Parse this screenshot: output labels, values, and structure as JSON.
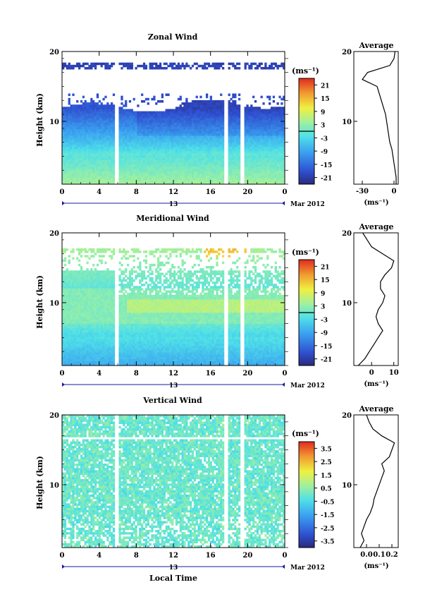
{
  "chart_data": [
    {
      "type": "heatmap",
      "title": "Zonal Wind",
      "ylabel": "Height (km)",
      "xlim": [
        0,
        24
      ],
      "ylim": [
        1,
        20
      ],
      "x_ticks": [
        "0",
        "4",
        "8",
        "12",
        "16",
        "20",
        "0"
      ],
      "y_ticks": [
        "10",
        "20"
      ],
      "date_label": "13",
      "month_label": "Mar 2012",
      "colorbar": {
        "unit": "(ms⁻¹)",
        "ticks": [
          "21",
          "15",
          "9",
          "3",
          "-3",
          "-9",
          "-15",
          "-21"
        ],
        "range": [
          -24,
          24
        ],
        "zero_line": true
      },
      "average": {
        "title": "Average",
        "xlabel": "(ms⁻¹)",
        "x_ticks": [
          "-30",
          "0"
        ],
        "xlim": [
          -38,
          4
        ],
        "profile_heights_km": [
          1,
          2,
          3,
          4,
          5,
          6,
          7,
          8,
          9,
          10,
          11,
          12,
          13,
          14,
          15,
          16,
          17,
          18,
          19,
          20
        ],
        "profile_values": [
          2,
          2,
          1,
          0,
          -1,
          -2,
          -4,
          -5,
          -6,
          -7,
          -8,
          -10,
          -12,
          -14,
          -16,
          -30,
          -25,
          -4,
          0,
          1
        ]
      }
    },
    {
      "type": "heatmap",
      "title": "Meridional Wind",
      "ylabel": "Height (km)",
      "xlim": [
        0,
        24
      ],
      "ylim": [
        1,
        20
      ],
      "x_ticks": [
        "0",
        "4",
        "8",
        "12",
        "16",
        "20",
        "0"
      ],
      "y_ticks": [
        "10",
        "20"
      ],
      "date_label": "13",
      "month_label": "Mar 2012",
      "colorbar": {
        "unit": "(ms⁻¹)",
        "ticks": [
          "21",
          "15",
          "9",
          "3",
          "-3",
          "-9",
          "-15",
          "-21"
        ],
        "range": [
          -24,
          24
        ],
        "zero_line": true
      },
      "average": {
        "title": "Average",
        "xlabel": "(ms⁻¹)",
        "x_ticks": [
          "0",
          "10"
        ],
        "xlim": [
          -8,
          12
        ],
        "profile_heights_km": [
          1,
          2,
          3,
          4,
          5,
          6,
          7,
          8,
          9,
          10,
          11,
          12,
          13,
          14,
          15,
          16,
          17,
          18,
          19,
          20
        ],
        "profile_values": [
          -6,
          -3,
          -1,
          1,
          3,
          5,
          3,
          2,
          3,
          5,
          6,
          4,
          4,
          6,
          9,
          10,
          5,
          0,
          -2,
          -4
        ]
      }
    },
    {
      "type": "heatmap",
      "title": "Vertical Wind",
      "ylabel": "Height (km)",
      "xlabel": "Local Time",
      "xlim": [
        0,
        24
      ],
      "ylim": [
        1,
        20
      ],
      "x_ticks": [
        "0",
        "4",
        "8",
        "12",
        "16",
        "20",
        "0"
      ],
      "y_ticks": [
        "10",
        "20"
      ],
      "date_label": "13",
      "month_label": "Mar 2012",
      "colorbar": {
        "unit": "(ms⁻¹)",
        "ticks": [
          "3.5",
          "2.5",
          "1.5",
          "0.5",
          "-0.5",
          "-1.5",
          "-2.5",
          "-3.5"
        ],
        "range": [
          -4,
          4
        ],
        "zero_line": false
      },
      "average": {
        "title": "Average",
        "xlabel": "(ms⁻¹)",
        "x_ticks": [
          "0.0",
          "0.1",
          "0.2"
        ],
        "xlim": [
          -0.1,
          0.25
        ],
        "profile_heights_km": [
          1,
          2,
          3,
          4,
          5,
          6,
          7,
          8,
          9,
          10,
          11,
          12,
          13,
          14,
          15,
          16,
          17,
          18,
          19,
          20
        ],
        "profile_values": [
          -0.05,
          -0.02,
          -0.04,
          -0.02,
          0.0,
          0.03,
          0.05,
          0.06,
          0.08,
          0.1,
          0.12,
          0.14,
          0.12,
          0.18,
          0.2,
          0.22,
          0.12,
          0.05,
          0.02,
          0.0
        ]
      }
    }
  ]
}
